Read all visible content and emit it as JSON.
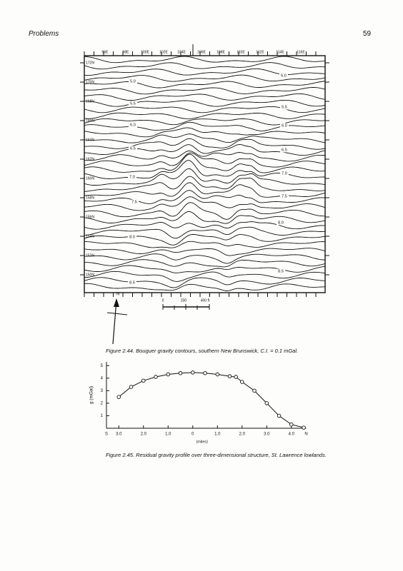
{
  "header": {
    "title": "Problems",
    "page_number": "59"
  },
  "figure_2_44": {
    "x_labels": [
      "96E",
      "98E",
      "100E",
      "102E",
      "104E",
      "106E",
      "108E",
      "110E",
      "112E",
      "114E",
      "116E"
    ],
    "y_labels": [
      "172N",
      "170N",
      "168N",
      "166N",
      "164N",
      "162N",
      "160N",
      "158N",
      "156N",
      "154N",
      "152N",
      "150N"
    ],
    "contour_labels": [
      "5.0",
      "5.0",
      "5.5",
      "5.5",
      "6.0",
      "6.0",
      "6.5",
      "6.5",
      "7.0",
      "7.0",
      "7.5",
      "7.5",
      "8.0",
      "8.0",
      "8.5",
      "8.5"
    ],
    "scale_labels": [
      "0",
      "200",
      "400 ft"
    ],
    "north": "N",
    "caption": "Figure 2.44. Bouguer gravity contours, southern New Brunswick, C.I. = 0.1 mGal."
  },
  "chart_data": {
    "type": "line",
    "y_label": "g (mGal)",
    "x_label": "(miles)",
    "x_end_labels": [
      "S",
      "N"
    ],
    "x": [
      -3,
      -2.5,
      -2,
      -1.5,
      -1,
      -0.5,
      0,
      0.5,
      1,
      1.5,
      1.75,
      2,
      2.5,
      3,
      3.5,
      4,
      4.5
    ],
    "series": [
      {
        "color": "#111111",
        "values": [
          2.5,
          3.3,
          3.8,
          4.1,
          4.3,
          4.4,
          4.45,
          4.4,
          4.3,
          4.15,
          4.1,
          3.7,
          3.0,
          2.0,
          1.0,
          0.3,
          0.05
        ]
      }
    ],
    "xlim": [
      -3.5,
      4.6
    ],
    "ylim": [
      0,
      5.3
    ],
    "xticks": [
      {
        "value": -3,
        "label": "3.0"
      },
      {
        "value": -2,
        "label": "2.0"
      },
      {
        "value": -1,
        "label": "1.0"
      },
      0,
      {
        "value": 1,
        "label": "1.0"
      },
      {
        "value": 2,
        "label": "2.0"
      },
      {
        "value": 3,
        "label": "3.0"
      },
      {
        "value": 4,
        "label": "4.0"
      }
    ],
    "yticks": [
      1,
      2,
      3,
      4,
      5
    ],
    "caption": "Figure 2.45. Residual gravity profile over three-dimensional structure, St. Lawrence lowlands."
  }
}
